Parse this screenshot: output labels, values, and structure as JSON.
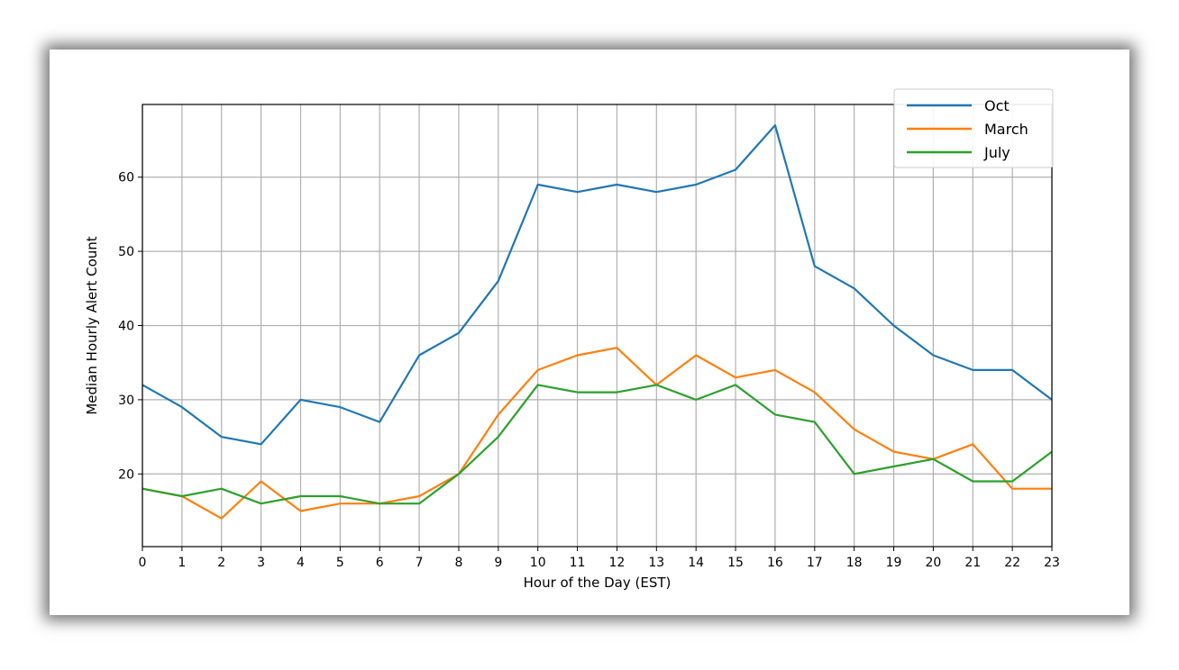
{
  "chart_data": {
    "type": "line",
    "title": "",
    "xlabel": "Hour of the Day (EST)",
    "ylabel": "Median Hourly Alert Count",
    "x": [
      0,
      1,
      2,
      3,
      4,
      5,
      6,
      7,
      8,
      9,
      10,
      11,
      12,
      13,
      14,
      15,
      16,
      17,
      18,
      19,
      20,
      21,
      22,
      23
    ],
    "xlim": [
      0,
      23
    ],
    "ylim": [
      10.2,
      69.8
    ],
    "yticks": [
      20,
      30,
      40,
      50,
      60
    ],
    "grid": true,
    "legend_position": "top-right",
    "series": [
      {
        "name": "Oct",
        "color": "#1f77b4",
        "values": [
          32,
          29,
          25,
          24,
          30,
          29,
          27,
          36,
          39,
          46,
          59,
          58,
          59,
          58,
          59,
          61,
          67,
          48,
          45,
          40,
          36,
          34,
          34,
          30
        ]
      },
      {
        "name": "March",
        "color": "#ff7f0e",
        "values": [
          18,
          17,
          14,
          19,
          15,
          16,
          16,
          17,
          20,
          28,
          34,
          36,
          37,
          32,
          36,
          33,
          34,
          31,
          26,
          23,
          22,
          24,
          18,
          18
        ]
      },
      {
        "name": "July",
        "color": "#2ca02c",
        "values": [
          18,
          17,
          18,
          16,
          17,
          17,
          16,
          16,
          20,
          25,
          32,
          31,
          31,
          32,
          30,
          32,
          28,
          27,
          20,
          21,
          22,
          19,
          19,
          23
        ]
      }
    ]
  }
}
